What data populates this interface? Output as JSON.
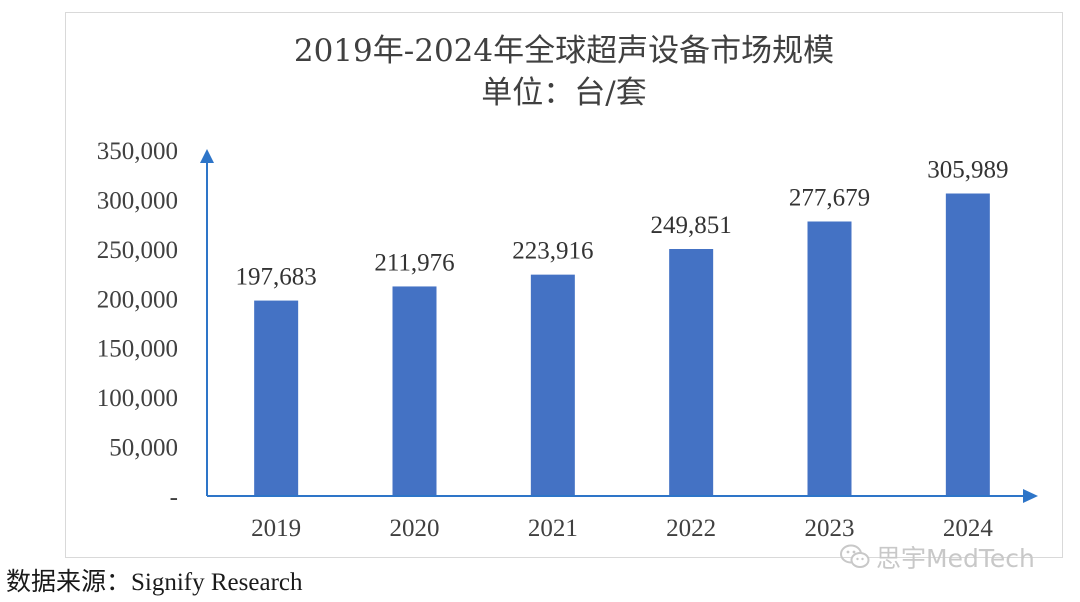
{
  "chart_data": {
    "type": "bar",
    "title": "2019年-2024年全球超声设备市场规模",
    "subtitle": "单位：台/套",
    "categories": [
      "2019",
      "2020",
      "2021",
      "2022",
      "2023",
      "2024"
    ],
    "values": [
      197683,
      211976,
      223916,
      249851,
      277679,
      305989
    ],
    "value_labels": [
      "197,683",
      "211,976",
      "223,916",
      "249,851",
      "277,679",
      "305,989"
    ],
    "y_ticks": [
      0,
      50000,
      100000,
      150000,
      200000,
      250000,
      300000,
      350000
    ],
    "y_tick_labels": [
      "-",
      "50,000",
      "100,000",
      "150,000",
      "200,000",
      "250,000",
      "300,000",
      "350,000"
    ],
    "ylim": [
      0,
      350000
    ],
    "grid": false,
    "legend": "none",
    "bar_color": "#4472C4",
    "axis_color": "#2E75C8"
  },
  "footer": {
    "source_prefix": "数据来源：",
    "source_name": "Signify Research"
  },
  "watermark": {
    "text": "思宇MedTech",
    "icon": "wechat-icon"
  }
}
